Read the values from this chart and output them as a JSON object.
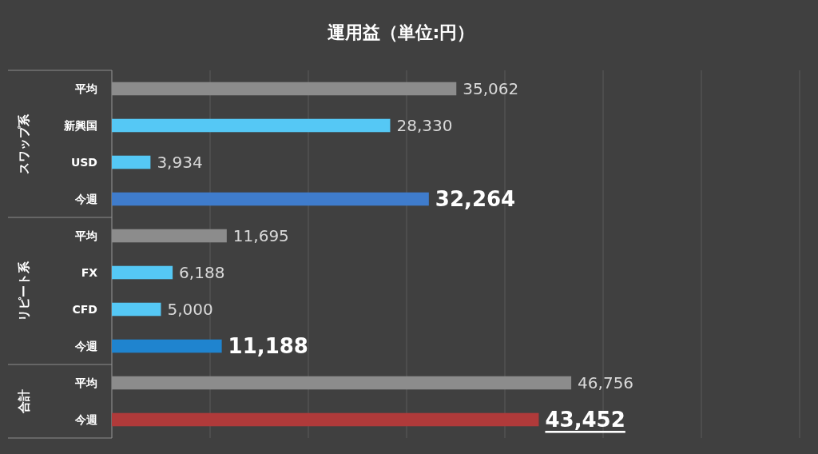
{
  "chart_data": {
    "type": "bar",
    "orientation": "horizontal",
    "title": "運用益（単位:円）",
    "categories": [
      "平均",
      "新興国",
      "USD",
      "今週",
      "平均",
      "FX",
      "CFD",
      "今週",
      "平均",
      "今週"
    ],
    "values": [
      35062,
      28330,
      3934,
      32264,
      11695,
      6188,
      5000,
      11188,
      46756,
      43452
    ],
    "colors": [
      "#8c8c8c",
      "#55c8f5",
      "#55c8f5",
      "#3f7ccc",
      "#8c8c8c",
      "#55c8f5",
      "#55c8f5",
      "#1f84cf",
      "#8c8c8c",
      "#b03a3a"
    ],
    "annotations": [
      "スワップ系",
      "リピート系",
      "合計"
    ],
    "xlim": [
      0,
      70000
    ],
    "xticks": [
      {
        "value": 0,
        "label": null
      },
      {
        "value": 10000,
        "label": null
      },
      {
        "value": 20000,
        "label": null
      },
      {
        "value": 30000,
        "label": null
      },
      {
        "value": 40000,
        "label": null
      },
      {
        "value": 50000,
        "label": null
      },
      {
        "value": 60000,
        "label": null
      },
      {
        "value": 70000,
        "label": null
      }
    ],
    "value_labels": [
      "35,062",
      "28,330",
      "3,934",
      "32,264",
      "11,695",
      "6,188",
      "5,000",
      "11,188",
      "46,756",
      "43,452"
    ],
    "grid": "x",
    "tick_labels": "y"
  }
}
